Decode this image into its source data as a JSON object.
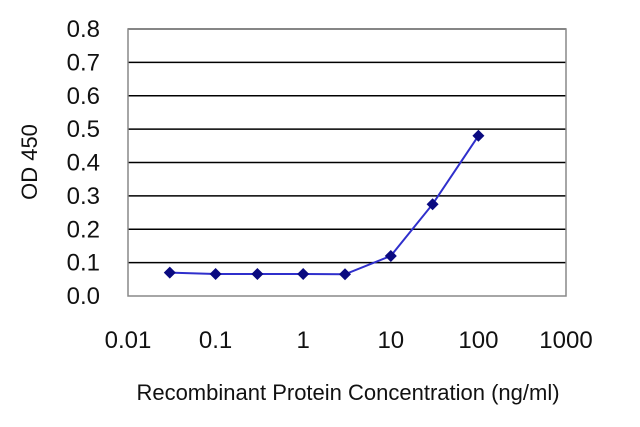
{
  "chart_data": {
    "type": "line",
    "title": "",
    "xlabel": "Recombinant Protein Concentration (ng/ml)",
    "ylabel": "OD 450",
    "x_scale": "log",
    "xlim": [
      0.01,
      1000
    ],
    "ylim": [
      0.0,
      0.8
    ],
    "x_ticks": [
      0.01,
      0.1,
      1,
      10,
      100,
      1000
    ],
    "x_tick_labels": [
      "0.01",
      "0.1",
      "1",
      "10",
      "100",
      "1000"
    ],
    "y_ticks": [
      0.0,
      0.1,
      0.2,
      0.3,
      0.4,
      0.5,
      0.6,
      0.7,
      0.8
    ],
    "y_tick_labels": [
      "0.0",
      "0.1",
      "0.2",
      "0.3",
      "0.4",
      "0.5",
      "0.6",
      "0.7",
      "0.8"
    ],
    "grid": "horizontal",
    "legend": "none",
    "series": [
      {
        "x": [
          0.03,
          0.1,
          0.3,
          1,
          3,
          10,
          30,
          100
        ],
        "y": [
          0.07,
          0.066,
          0.066,
          0.066,
          0.065,
          0.12,
          0.275,
          0.48
        ]
      }
    ],
    "colors": {
      "line": "#2f2fcc",
      "marker": "#0a0a80",
      "grid": "#000000",
      "frame": "#888888"
    }
  }
}
